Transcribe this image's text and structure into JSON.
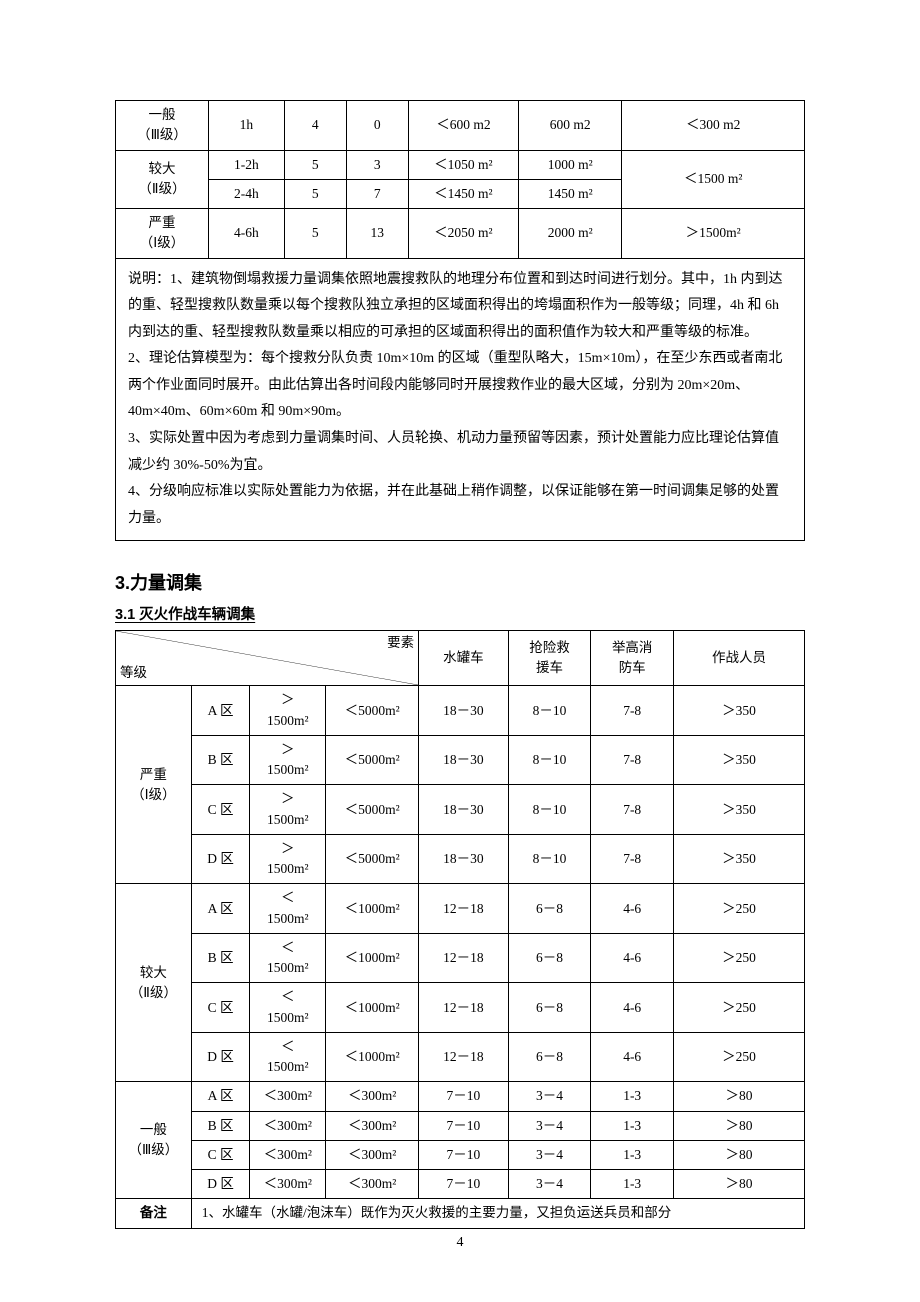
{
  "table1": {
    "rows": [
      {
        "lvl": "一般\n（Ⅲ级）",
        "time": "1h",
        "a": "4",
        "b": "0",
        "c": "＜600 m2",
        "d": "600 m2",
        "e": "＜300 m2"
      },
      {
        "lvl": "较大\n（Ⅱ级）",
        "sub": [
          {
            "time": "1-2h",
            "a": "5",
            "b": "3",
            "c": "＜1050 m²",
            "d": "1000 m²"
          },
          {
            "time": "2-4h",
            "a": "5",
            "b": "7",
            "c": "＜1450 m²",
            "d": "1450 m²"
          }
        ],
        "e": "＜1500 m²"
      },
      {
        "lvl": "严重\n（Ⅰ级）",
        "time": "4-6h",
        "a": "5",
        "b": "13",
        "c": "＜2050 m²",
        "d": "2000 m²",
        "e": "＞1500m²"
      }
    ],
    "notes": "说明：1、建筑物倒塌救援力量调集依照地震搜救队的地理分布位置和到达时间进行划分。其中，1h 内到达的重、轻型搜救队数量乘以每个搜救队独立承担的区域面积得出的垮塌面积作为一般等级；同理，4h 和 6h 内到达的重、轻型搜救队数量乘以相应的可承担的区域面积得出的面积值作为较大和严重等级的标准。\n2、理论估算模型为：每个搜救分队负责 10m×10m 的区域（重型队略大，15m×10m），在至少东西或者南北两个作业面同时展开。由此估算出各时间段内能够同时开展搜救作业的最大区域，分别为 20m×20m、40m×40m、60m×60m 和 90m×90m。\n3、实际处置中因为考虑到力量调集时间、人员轮换、机动力量预留等因素，预计处置能力应比理论估算值减少约 30%-50%为宜。\n4、分级响应标准以实际处置能力为依据，并在此基础上稍作调整，以保证能够在第一时间调集足够的处置力量。"
  },
  "section3": {
    "title": "3.力量调集",
    "sub": "3.1 灭火作战车辆调集"
  },
  "table2": {
    "diag": {
      "left": "等级",
      "right": "要素"
    },
    "headers": [
      "水罐车",
      "抢险救\n援车",
      "举高消\n防车",
      "作战人员"
    ],
    "groups": [
      {
        "lvl": "严重\n（Ⅰ级）",
        "rows": [
          {
            "z": "A 区",
            "a": "＞\n1500m²",
            "b": "＜5000m²",
            "c": "18－30",
            "d": "8－10",
            "e": "7-8",
            "f": "＞350"
          },
          {
            "z": "B 区",
            "a": "＞\n1500m²",
            "b": "＜5000m²",
            "c": "18－30",
            "d": "8－10",
            "e": "7-8",
            "f": "＞350"
          },
          {
            "z": "C 区",
            "a": "＞\n1500m²",
            "b": "＜5000m²",
            "c": "18－30",
            "d": "8－10",
            "e": "7-8",
            "f": "＞350"
          },
          {
            "z": "D 区",
            "a": "＞\n1500m²",
            "b": "＜5000m²",
            "c": "18－30",
            "d": "8－10",
            "e": "7-8",
            "f": "＞350"
          }
        ]
      },
      {
        "lvl": "较大\n（Ⅱ级）",
        "rows": [
          {
            "z": "A 区",
            "a": "＜\n1500m²",
            "b": "＜1000m²",
            "c": "12－18",
            "d": "6－8",
            "e": "4-6",
            "f": "＞250"
          },
          {
            "z": "B 区",
            "a": "＜\n1500m²",
            "b": "＜1000m²",
            "c": "12－18",
            "d": "6－8",
            "e": "4-6",
            "f": "＞250"
          },
          {
            "z": "C 区",
            "a": "＜\n1500m²",
            "b": "＜1000m²",
            "c": "12－18",
            "d": "6－8",
            "e": "4-6",
            "f": "＞250"
          },
          {
            "z": "D 区",
            "a": "＜\n1500m²",
            "b": "＜1000m²",
            "c": "12－18",
            "d": "6－8",
            "e": "4-6",
            "f": "＞250"
          }
        ]
      },
      {
        "lvl": "一般\n（Ⅲ级）",
        "rows": [
          {
            "z": "A 区",
            "a": "＜300m²",
            "b": "＜300m²",
            "c": "7－10",
            "d": "3－4",
            "e": "1-3",
            "f": "＞80"
          },
          {
            "z": "B 区",
            "a": "＜300m²",
            "b": "＜300m²",
            "c": "7－10",
            "d": "3－4",
            "e": "1-3",
            "f": "＞80"
          },
          {
            "z": "C 区",
            "a": "＜300m²",
            "b": "＜300m²",
            "c": "7－10",
            "d": "3－4",
            "e": "1-3",
            "f": "＞80"
          },
          {
            "z": "D 区",
            "a": "＜300m²",
            "b": "＜300m²",
            "c": "7－10",
            "d": "3－4",
            "e": "1-3",
            "f": "＞80"
          }
        ]
      }
    ],
    "footer_label": "备注",
    "footer_text": "1、水罐车（水罐/泡沫车）既作为灭火救援的主要力量，又担负运送兵员和部分"
  },
  "pagenum": "4",
  "colors": {
    "text": "#000000",
    "bg": "#ffffff",
    "border": "#000000"
  }
}
